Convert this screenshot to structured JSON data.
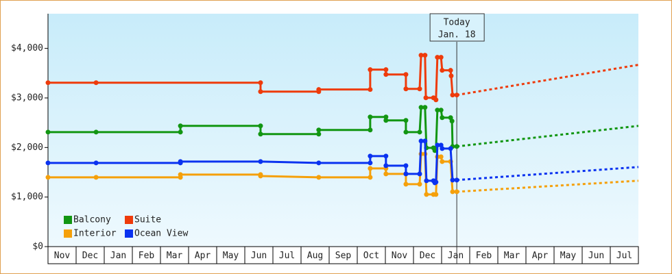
{
  "chart_data": {
    "type": "step-line",
    "xlim": [
      0,
      21
    ],
    "xticks": [
      {
        "value": 0.5,
        "label": "Nov"
      },
      {
        "value": 1.5,
        "label": "Dec"
      },
      {
        "value": 2.5,
        "label": "Jan"
      },
      {
        "value": 3.5,
        "label": "Feb"
      },
      {
        "value": 4.5,
        "label": "Mar"
      },
      {
        "value": 5.5,
        "label": "Apr"
      },
      {
        "value": 6.5,
        "label": "May"
      },
      {
        "value": 7.5,
        "label": "Jun"
      },
      {
        "value": 8.5,
        "label": "Jul"
      },
      {
        "value": 9.5,
        "label": "Aug"
      },
      {
        "value": 10.5,
        "label": "Sep"
      },
      {
        "value": 11.5,
        "label": "Oct"
      },
      {
        "value": 12.5,
        "label": "Nov"
      },
      {
        "value": 13.5,
        "label": "Dec"
      },
      {
        "value": 14.5,
        "label": "Jan"
      },
      {
        "value": 15.5,
        "label": "Feb"
      },
      {
        "value": 16.5,
        "label": "Mar"
      },
      {
        "value": 17.5,
        "label": "Apr"
      },
      {
        "value": 18.5,
        "label": "May"
      },
      {
        "value": 19.5,
        "label": "Jun"
      },
      {
        "value": 20.5,
        "label": "Jul"
      }
    ],
    "ylim": [
      0,
      4700
    ],
    "yticks": [
      {
        "value": 0,
        "label": "$0"
      },
      {
        "value": 1000,
        "label": "$1,000"
      },
      {
        "value": 2000,
        "label": "$2,000"
      },
      {
        "value": 3000,
        "label": "$3,000"
      },
      {
        "value": 4000,
        "label": "$4,000"
      }
    ],
    "today": {
      "x": 14.54,
      "label": [
        "Today",
        "Jan. 18"
      ]
    },
    "series": [
      {
        "name": "Balcony",
        "color": "#129612",
        "x": [
          0,
          1.71,
          4.71,
          4.71,
          7.56,
          7.56,
          9.63,
          9.63,
          11.46,
          11.46,
          12.02,
          12.02,
          12.73,
          12.73,
          13.22,
          13.27,
          13.41,
          13.46,
          13.71,
          13.76,
          13.8,
          13.85,
          13.98,
          14.02,
          14.32,
          14.37,
          14.39,
          14.54
        ],
        "values": [
          2311,
          2311,
          2311,
          2436,
          2436,
          2270,
          2270,
          2353,
          2353,
          2616,
          2616,
          2547,
          2547,
          2311,
          2311,
          2810,
          2810,
          1993,
          1993,
          1938,
          1966,
          2755,
          2755,
          2602,
          2602,
          2533,
          2021,
          2021
        ],
        "projection": {
          "x": [
            14.54,
            21
          ],
          "values": [
            2021,
            2436
          ]
        }
      },
      {
        "name": "Suite",
        "color": "#ee3b0b",
        "x": [
          0,
          1.71,
          7.56,
          7.56,
          9.63,
          9.63,
          11.46,
          11.46,
          12.02,
          12.02,
          12.73,
          12.73,
          13.22,
          13.27,
          13.41,
          13.44,
          13.71,
          13.8,
          13.85,
          13.98,
          14.02,
          14.32,
          14.34,
          14.39,
          14.54
        ],
        "values": [
          3308,
          3308,
          3308,
          3128,
          3128,
          3170,
          3170,
          3571,
          3571,
          3474,
          3474,
          3183,
          3183,
          3862,
          3862,
          3003,
          3003,
          2962,
          3820,
          3820,
          3557,
          3557,
          3446,
          3059,
          3059
        ],
        "projection": {
          "x": [
            14.54,
            21
          ],
          "values": [
            3059,
            3668
          ]
        }
      },
      {
        "name": "Interior",
        "color": "#f5a00a",
        "x": [
          0,
          1.71,
          4.71,
          4.71,
          7.56,
          7.56,
          9.63,
          11.46,
          11.46,
          12.02,
          12.02,
          12.73,
          12.73,
          13.22,
          13.27,
          13.41,
          13.46,
          13.71,
          13.8,
          13.85,
          13.98,
          14.02,
          14.32,
          14.39,
          14.54
        ],
        "values": [
          1398,
          1398,
          1398,
          1453,
          1453,
          1425,
          1398,
          1398,
          1578,
          1578,
          1467,
          1467,
          1260,
          1260,
          1869,
          1869,
          1052,
          1052,
          1052,
          1813,
          1813,
          1716,
          1716,
          1107,
          1107
        ],
        "projection": {
          "x": [
            14.54,
            21
          ],
          "values": [
            1107,
            1329
          ]
        }
      },
      {
        "name": "Ocean View",
        "color": "#0a32f0",
        "x": [
          0,
          1.71,
          4.71,
          4.71,
          7.56,
          9.63,
          11.46,
          11.46,
          12.02,
          12.02,
          12.73,
          12.73,
          13.22,
          13.27,
          13.41,
          13.46,
          13.71,
          13.76,
          13.8,
          13.85,
          13.98,
          14.02,
          14.32,
          14.39,
          14.54
        ],
        "values": [
          1689,
          1689,
          1689,
          1716,
          1716,
          1689,
          1689,
          1827,
          1827,
          1633,
          1633,
          1467,
          1467,
          2131,
          2131,
          1329,
          1329,
          1287,
          1301,
          2048,
          2048,
          1979,
          1979,
          1343,
          1343
        ],
        "projection": {
          "x": [
            14.54,
            21
          ],
          "values": [
            1343,
            1606
          ]
        }
      }
    ]
  }
}
